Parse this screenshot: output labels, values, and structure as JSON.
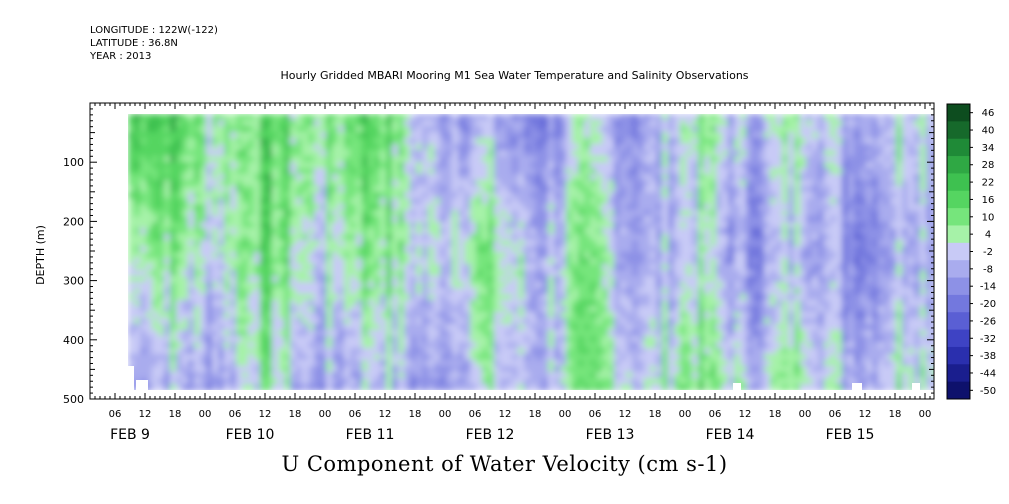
{
  "header": {
    "longitude": "LONGITUDE : 122W(-122)",
    "latitude": "LATITUDE : 36.8N",
    "year": "YEAR : 2013"
  },
  "chart_data": {
    "type": "heatmap",
    "title": "Hourly Gridded MBARI Mooring M1 Sea Water Temperature and Salinity Observations",
    "xlabel": "U Component of Water Velocity (cm s-1)",
    "ylabel": "DEPTH (m)",
    "ylim": [
      500,
      0
    ],
    "y_ticks": [
      100,
      200,
      300,
      400,
      500
    ],
    "hour_tick_labels": [
      "06",
      "12",
      "18",
      "00",
      "06",
      "12",
      "18",
      "00",
      "06",
      "12",
      "18",
      "00",
      "06",
      "12",
      "18",
      "00",
      "06",
      "12",
      "18",
      "00",
      "06",
      "12",
      "18",
      "00",
      "06",
      "12",
      "18",
      "00"
    ],
    "day_labels": [
      "FEB  9",
      "FEB 10",
      "FEB 11",
      "FEB 12",
      "FEB 13",
      "FEB 14",
      "FEB 15"
    ],
    "colorbar": {
      "levels": [
        46,
        40,
        34,
        28,
        22,
        16,
        10,
        4,
        -2,
        -8,
        -14,
        -20,
        -26,
        -32,
        -38,
        -44,
        -50
      ],
      "colors": [
        "#0d4d1f",
        "#16692b",
        "#1f8a37",
        "#2fa844",
        "#3ec150",
        "#55d561",
        "#76e57c",
        "#a6f2a8",
        "#c8caf6",
        "#a9acee",
        "#8d91e6",
        "#7378de",
        "#5a5fd4",
        "#3e43c4",
        "#2a2fae",
        "#1a1e8e",
        "#0e116c"
      ]
    },
    "depth_profiles": [
      {
        "day": "FEB  9",
        "surface": 22,
        "mid": 6,
        "deep": -10
      },
      {
        "day": "FEB 10",
        "surface": 12,
        "mid": 10,
        "deep": 2
      },
      {
        "day": "FEB 11",
        "surface": 16,
        "mid": 8,
        "deep": -6
      },
      {
        "day": "FEB 12",
        "surface": -10,
        "mid": 6,
        "deep": -4
      },
      {
        "day": "FEB 13",
        "surface": -6,
        "mid": 2,
        "deep": 6
      },
      {
        "day": "FEB 14",
        "surface": 4,
        "mid": -4,
        "deep": 8
      },
      {
        "day": "FEB 15",
        "surface": 2,
        "mid": -6,
        "deep": 4
      }
    ]
  }
}
